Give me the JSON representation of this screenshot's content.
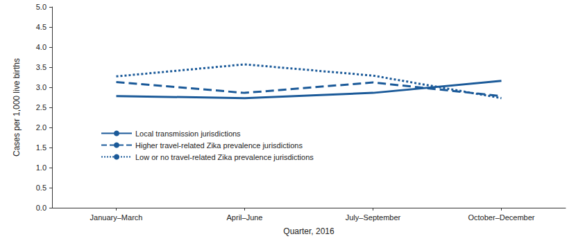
{
  "chart_data": {
    "type": "line",
    "categories": [
      "January–March",
      "April–June",
      "July–September",
      "October–December"
    ],
    "x_label": "Quarter, 2016",
    "y_label": "Cases per 1,000 live births",
    "ylim": [
      0,
      5
    ],
    "yticks": [
      {
        "value": 0,
        "label": "0.0"
      },
      {
        "value": 0.5,
        "label": "0.5"
      },
      {
        "value": 1,
        "label": "1.0"
      },
      {
        "value": 1.5,
        "label": "1.5"
      },
      {
        "value": 2,
        "label": "2.0"
      },
      {
        "value": 2.5,
        "label": "2.5"
      },
      {
        "value": 3,
        "label": "3.0"
      },
      {
        "value": 3.5,
        "label": "3.5"
      },
      {
        "value": 4,
        "label": "4.0"
      },
      {
        "value": 4.5,
        "label": "4.5"
      },
      {
        "value": 5,
        "label": "5.0"
      }
    ],
    "grid": false,
    "legend": "left",
    "series": [
      {
        "name": "Local transmission jurisdictions",
        "color": "#1b5a99",
        "line_style": "solid",
        "values": [
          2.78,
          2.73,
          2.86,
          3.16
        ]
      },
      {
        "name": "Higher travel-related Zika prevalence jurisdictions",
        "color": "#1b5a99",
        "line_style": "dashed",
        "values": [
          3.13,
          2.86,
          3.12,
          2.78
        ]
      },
      {
        "name": "Low or no travel-related Zika prevalence jurisdictions",
        "color": "#1b5a99",
        "line_style": "dotted",
        "values": [
          3.27,
          3.57,
          3.29,
          2.73
        ]
      }
    ]
  }
}
